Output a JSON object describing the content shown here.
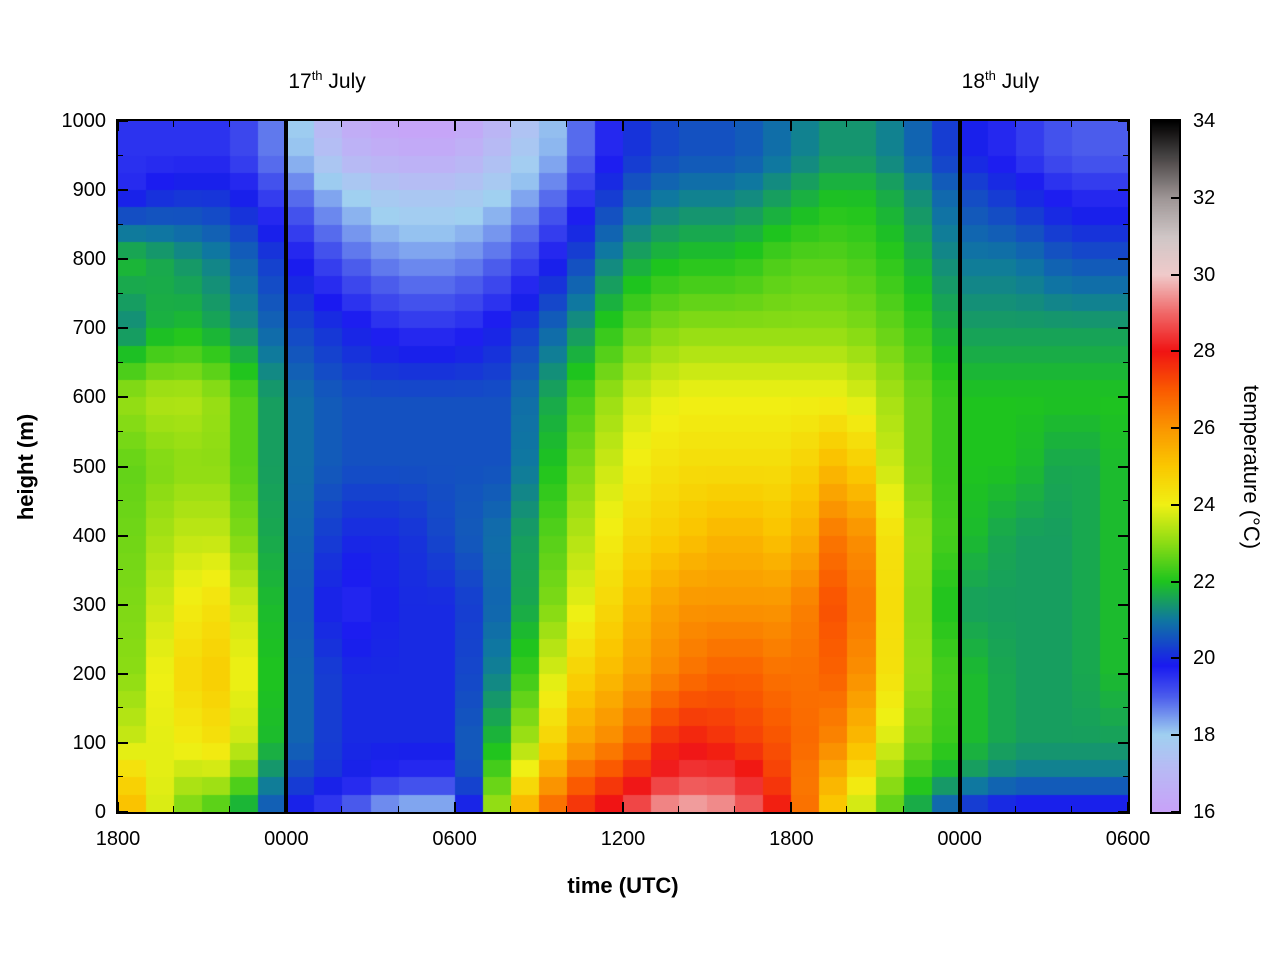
{
  "chart_data": {
    "type": "heatmap",
    "title": "",
    "xlabel": "time (UTC)",
    "ylabel": "height (m)",
    "cblabel": "temperature (°C)",
    "x_range_hours": [
      0,
      36
    ],
    "y_range_m": [
      0,
      1000
    ],
    "c_range": [
      16,
      34
    ],
    "x_major_ticks": [
      {
        "hour": 0,
        "label": "1800"
      },
      {
        "hour": 6,
        "label": "0000"
      },
      {
        "hour": 12,
        "label": "0600"
      },
      {
        "hour": 18,
        "label": "1200"
      },
      {
        "hour": 24,
        "label": "1800"
      },
      {
        "hour": 30,
        "label": "0000"
      },
      {
        "hour": 36,
        "label": "0600"
      }
    ],
    "x_minor_step_hours": 2,
    "y_ticks": [
      0,
      100,
      200,
      300,
      400,
      500,
      600,
      700,
      800,
      900,
      1000
    ],
    "y_minor_step_m": 50,
    "cb_ticks": [
      16,
      18,
      20,
      22,
      24,
      26,
      28,
      30,
      32,
      34
    ],
    "vlines_hours": [
      6,
      30
    ],
    "annotations": [
      {
        "day": "17",
        "ordinal": "th",
        "month": "July",
        "hour": 6
      },
      {
        "day": "18",
        "ordinal": "th",
        "month": "July",
        "hour": 30
      }
    ],
    "x_hours": [
      0,
      2,
      4,
      6,
      8,
      10,
      12,
      14,
      16,
      18,
      20,
      22,
      24,
      26,
      28,
      30,
      32,
      34,
      36
    ],
    "heights_m": [
      0,
      50,
      100,
      200,
      300,
      400,
      500,
      600,
      700,
      800,
      900,
      950,
      1000
    ],
    "temperature_grid_by_height": [
      [
        26,
        23,
        22,
        20,
        19,
        18,
        18,
        25,
        27.5,
        28.5,
        30,
        29.5,
        27.5,
        24,
        22,
        20,
        19.5,
        19.5,
        19.5
      ],
      [
        25,
        23.5,
        23.5,
        20.5,
        20,
        19.5,
        19.5,
        23.5,
        26.5,
        27.5,
        28.5,
        28.5,
        27,
        25,
        22.5,
        21.5,
        21,
        21,
        21
      ],
      [
        23.5,
        24,
        24.5,
        21,
        20,
        20,
        20,
        22.5,
        25.5,
        26.5,
        28,
        27.5,
        27,
        26,
        23,
        22,
        21.5,
        21.5,
        21.5
      ],
      [
        22.5,
        24.5,
        25,
        21,
        20,
        20,
        20,
        21.5,
        24.5,
        25.5,
        26.5,
        27,
        26.5,
        27,
        23.5,
        22,
        21.5,
        21.5,
        22
      ],
      [
        22.5,
        24,
        24.5,
        21,
        19.5,
        20,
        20,
        21,
        23.5,
        25,
        26,
        26,
        26,
        27.5,
        23.5,
        21.5,
        21.5,
        21.5,
        22
      ],
      [
        22.5,
        23.5,
        23.5,
        21,
        20,
        20,
        20.5,
        21,
        23,
        24.5,
        25,
        25.5,
        25,
        27,
        23.5,
        22,
        21.5,
        21.5,
        22
      ],
      [
        22.5,
        23,
        23,
        21,
        20.5,
        20.5,
        20.5,
        20.5,
        22.5,
        24,
        24.5,
        24.5,
        24.5,
        25.5,
        23,
        22,
        22,
        21.5,
        22
      ],
      [
        23,
        23.5,
        23,
        21,
        20.5,
        20.5,
        20.5,
        20.5,
        22,
        23.5,
        24,
        24,
        24,
        24,
        23,
        22,
        22,
        22,
        22
      ],
      [
        21,
        22,
        21.5,
        20.5,
        20,
        19.5,
        19.5,
        20,
        21,
        22.5,
        23,
        23,
        23,
        23,
        22.5,
        21.5,
        21.5,
        21.5,
        21.5
      ],
      [
        22,
        21.5,
        21,
        20,
        19,
        18.5,
        18.5,
        19,
        20,
        21.5,
        22,
        22,
        22.5,
        22.5,
        22,
        21,
        21,
        20.5,
        20.5
      ],
      [
        19.5,
        20,
        20,
        19,
        18,
        17.5,
        17.5,
        18,
        19,
        20.5,
        21,
        21,
        21.5,
        22,
        21.5,
        20.5,
        20,
        19.5,
        19.5
      ],
      [
        19.5,
        19.5,
        19.5,
        18.5,
        17,
        16.5,
        16.5,
        17.5,
        18.5,
        20,
        20.5,
        20.5,
        21,
        21.5,
        21,
        20,
        19.5,
        19,
        19
      ],
      [
        19.5,
        19.5,
        19.5,
        18.5,
        16.5,
        16,
        16,
        17,
        18.5,
        20,
        20.5,
        20.5,
        21,
        21.5,
        21,
        20,
        19.5,
        19,
        19
      ]
    ],
    "palette": [
      [
        16,
        "#c8a2f8"
      ],
      [
        17.2,
        "#b6bcf4"
      ],
      [
        18,
        "#a0d0f0"
      ],
      [
        19,
        "#4b5cec"
      ],
      [
        19.8,
        "#1a1af0"
      ],
      [
        21,
        "#0f78a0"
      ],
      [
        22,
        "#1ec41e"
      ],
      [
        23,
        "#8cdc14"
      ],
      [
        24,
        "#f0f014"
      ],
      [
        25,
        "#fac800"
      ],
      [
        26,
        "#fa9600"
      ],
      [
        27,
        "#fa5a00"
      ],
      [
        28,
        "#f01414"
      ],
      [
        29,
        "#f06868"
      ],
      [
        30,
        "#f0caca"
      ],
      [
        31,
        "#cfc6c6"
      ],
      [
        32,
        "#9e9696"
      ],
      [
        33,
        "#4e4a4a"
      ],
      [
        34,
        "#000000"
      ]
    ]
  }
}
